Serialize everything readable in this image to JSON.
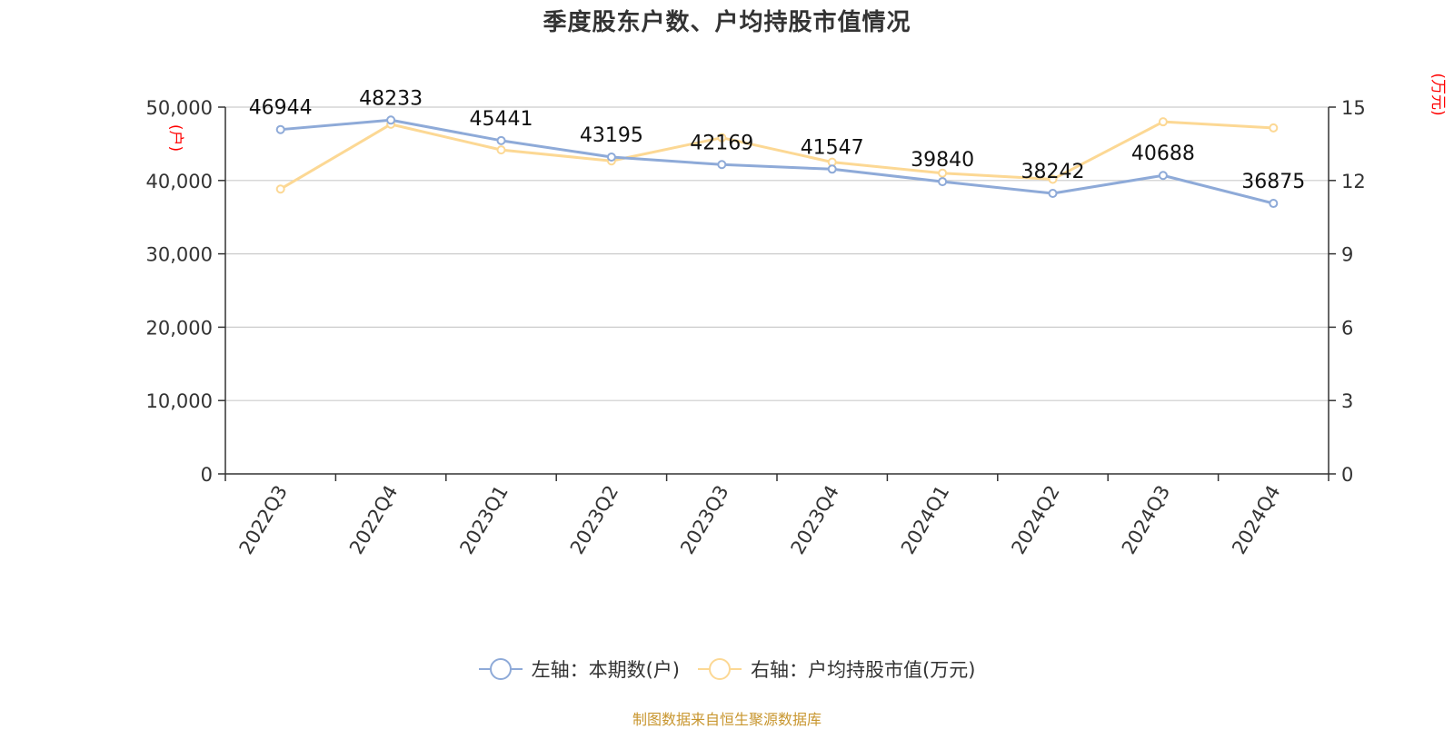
{
  "chart_data": {
    "type": "line",
    "title": "季度股东户数、户均持股市值情况",
    "categories": [
      "2022Q3",
      "2022Q4",
      "2023Q1",
      "2023Q2",
      "2023Q3",
      "2023Q4",
      "2024Q1",
      "2024Q2",
      "2024Q3",
      "2024Q4"
    ],
    "series": [
      {
        "name": "左轴：本期数(户)",
        "axis": "left",
        "color": "#8eaad8",
        "values": [
          46944,
          48233,
          45441,
          43195,
          42169,
          41547,
          39840,
          38242,
          40688,
          36875
        ],
        "labels": [
          "46944",
          "48233",
          "45441",
          "43195",
          "42169",
          "41547",
          "39840",
          "38242",
          "40688",
          "36875"
        ]
      },
      {
        "name": "右轴：户均持股市值(万元)",
        "axis": "right",
        "color": "#fcd894",
        "values": [
          11.65,
          14.3,
          13.25,
          12.8,
          13.75,
          12.75,
          12.3,
          12.05,
          14.4,
          14.15
        ]
      }
    ],
    "y_left": {
      "label": "(户)",
      "ylim": [
        0,
        50000
      ],
      "ticks": [
        0,
        10000,
        20000,
        30000,
        40000,
        50000
      ],
      "tick_labels": [
        "0",
        "10,000",
        "20,000",
        "30,000",
        "40,000",
        "50,000"
      ]
    },
    "y_right": {
      "label": "(万元)",
      "ylim": [
        0,
        15
      ],
      "ticks": [
        0,
        3,
        6,
        9,
        12,
        15
      ],
      "tick_labels": [
        "0",
        "3",
        "6",
        "9",
        "12",
        "15"
      ]
    },
    "grid": true,
    "legend": "bottom-center",
    "axis_label_color": "#ff0000"
  },
  "source": "制图数据来自恒生聚源数据库"
}
